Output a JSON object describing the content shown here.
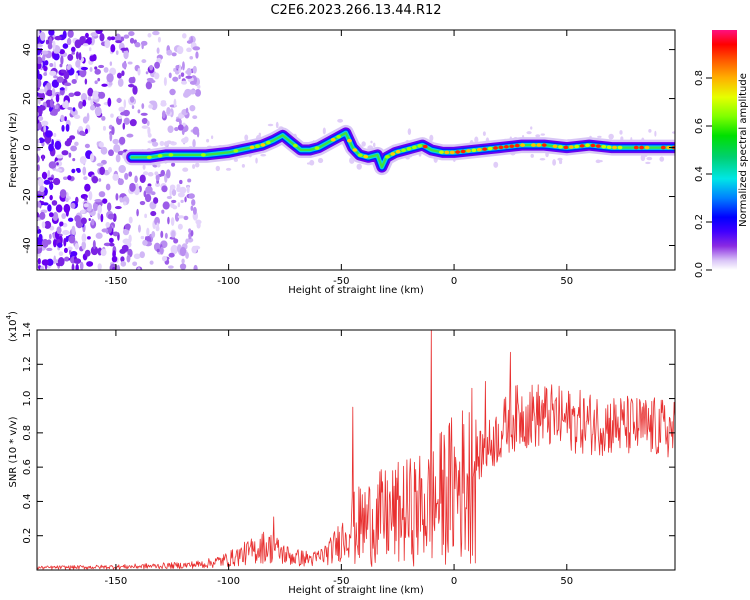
{
  "title": "C2E6.2023.266.13.44.R12",
  "chart_data": [
    {
      "type": "heatmap",
      "name": "spectrogram",
      "xlabel": "Height of straight line (km)",
      "ylabel": "Frequency (Hz)",
      "xlim": [
        -185,
        98
      ],
      "ylim": [
        -50,
        48
      ],
      "xticks": [
        -150,
        -100,
        -50,
        0,
        50
      ],
      "yticks": [
        -40,
        -20,
        0,
        20,
        40
      ],
      "ridge_x": [
        -143,
        -135,
        -128,
        -120,
        -110,
        -100,
        -95,
        -90,
        -85,
        -80,
        -76,
        -72,
        -68,
        -64,
        -60,
        -56,
        -52,
        -48,
        -45,
        -42,
        -38,
        -34,
        -32,
        -30,
        -26,
        -22,
        -18,
        -14,
        -10,
        -5,
        0,
        10,
        20,
        30,
        40,
        50,
        60,
        70,
        80,
        90,
        98
      ],
      "ridge_y": [
        -4,
        -4,
        -3,
        -3,
        -3,
        -2,
        -1,
        0,
        1,
        3,
        5,
        2,
        -1,
        -1,
        0,
        2,
        4,
        6,
        0,
        -3,
        -4,
        -3,
        -8,
        -4,
        -2,
        -1,
        0,
        1,
        -1,
        -2,
        -2,
        -1,
        0,
        1,
        1,
        0,
        1,
        0,
        0,
        0,
        0
      ],
      "colorbar": {
        "label": "Normalized spectral amplitude",
        "range": [
          0,
          1
        ],
        "ticks": [
          "0.0",
          "0.2",
          "0.4",
          "0.6",
          "0.8"
        ]
      }
    },
    {
      "type": "line",
      "name": "snr",
      "xlabel": "Height of straight line (km)",
      "ylabel": "SNR (10 * v/v)",
      "multiplier_label": "(x10",
      "multiplier_exp": "4",
      "multiplier_close": ")",
      "xlim": [
        -185,
        98
      ],
      "ylim": [
        0,
        1.4
      ],
      "xticks": [
        -150,
        -100,
        -50,
        0,
        50
      ],
      "yticks": [
        "0.2",
        "0.4",
        "0.6",
        "0.8",
        "1.0",
        "1.2",
        "1.4"
      ],
      "color": "#e83030",
      "envelope_x": [
        -185,
        -150,
        -120,
        -110,
        -100,
        -90,
        -85,
        -80,
        -75,
        -70,
        -62,
        -55,
        -50,
        -45,
        -40,
        -35,
        -30,
        -25,
        -20,
        -15,
        -10,
        -5,
        0,
        5,
        10,
        15,
        20,
        25,
        30,
        40,
        50,
        60,
        70,
        80,
        90,
        98
      ],
      "envelope_y": [
        0.015,
        0.02,
        0.03,
        0.04,
        0.07,
        0.12,
        0.15,
        0.14,
        0.1,
        0.08,
        0.07,
        0.12,
        0.2,
        0.3,
        0.35,
        0.38,
        0.4,
        0.42,
        0.44,
        0.46,
        0.48,
        0.56,
        0.62,
        0.66,
        0.7,
        0.78,
        0.86,
        0.95,
        0.98,
        0.98,
        0.95,
        0.93,
        0.92,
        0.91,
        0.9,
        0.88
      ],
      "spikes": [
        {
          "x": -10,
          "y": 1.42
        },
        {
          "x": 25,
          "y": 1.27
        },
        {
          "x": -45,
          "y": 0.95
        },
        {
          "x": -80,
          "y": 0.31
        },
        {
          "x": 14,
          "y": 1.1
        },
        {
          "x": 8,
          "y": 1.06
        }
      ]
    }
  ]
}
